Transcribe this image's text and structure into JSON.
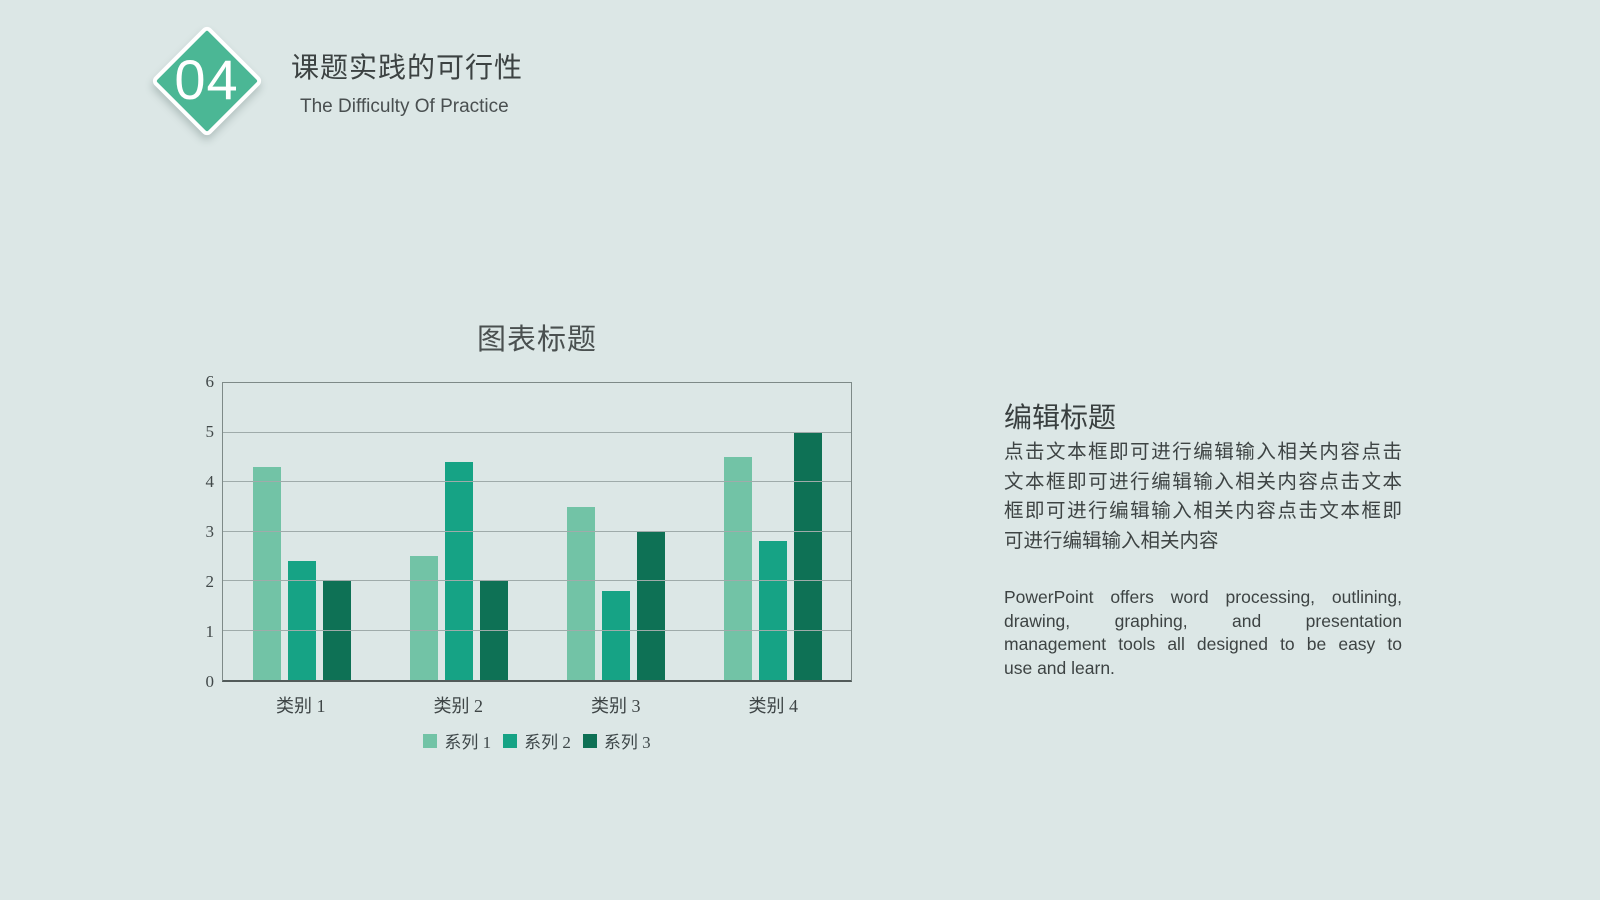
{
  "page": {
    "background_color": "#dce7e6"
  },
  "header": {
    "number": "04",
    "title": "课题实践的可行性",
    "subtitle": "The Difficulty Of Practice",
    "diamond_color": "#4bb795"
  },
  "chart_data": {
    "type": "bar",
    "title": "图表标题",
    "categories": [
      "类别 1",
      "类别 2",
      "类别 3",
      "类别 4"
    ],
    "series": [
      {
        "name": "系列 1",
        "color": "#72c3a6",
        "values": [
          4.3,
          2.5,
          3.5,
          4.5
        ]
      },
      {
        "name": "系列 2",
        "color": "#16a385",
        "values": [
          2.4,
          4.4,
          1.8,
          2.8
        ]
      },
      {
        "name": "系列 3",
        "color": "#0e7155",
        "values": [
          2.0,
          2.0,
          3.0,
          5.0
        ]
      }
    ],
    "xlabel": "",
    "ylabel": "",
    "ylim": [
      0,
      6
    ],
    "ytick_step": 1,
    "grid": true,
    "legend_position": "bottom"
  },
  "text_panel": {
    "heading": "编辑标题",
    "body_cn_lines": [
      "点击文本框即可进行编辑输入相关内容点击",
      "文本框即可进行编辑输入相关内容点击文本",
      "框即可进行编辑输入相关内容点击文本框即",
      "可进行编辑输入相关内容"
    ],
    "body_en_lines": [
      "PowerPoint offers word processing, outlining,",
      "drawing, graphing, and presentation",
      "management tools all designed to be easy to",
      "use and learn."
    ]
  }
}
